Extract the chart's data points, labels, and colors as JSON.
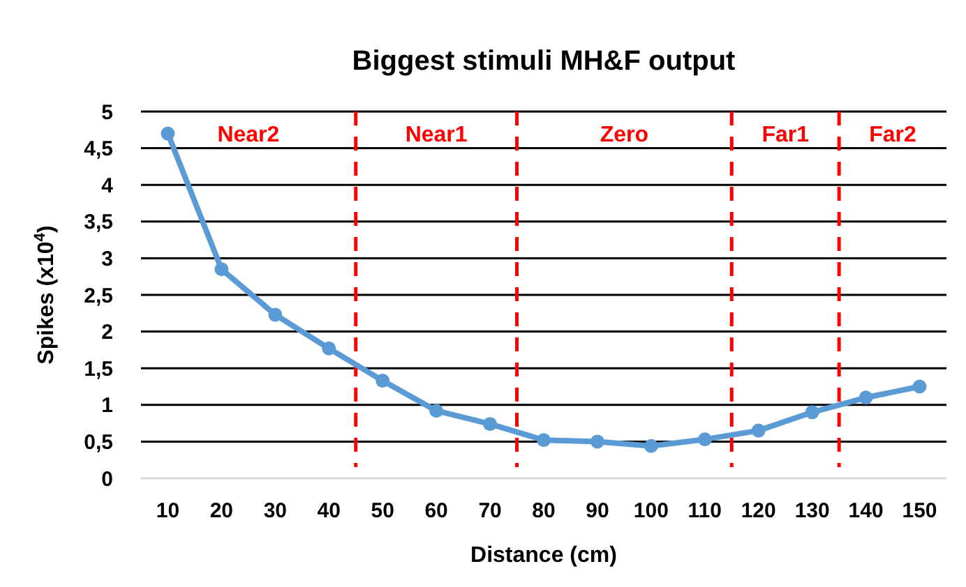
{
  "chart_data": {
    "type": "line",
    "title": "Biggest stimuli MH&F output",
    "xlabel": "Distance (cm)",
    "ylabel": "Spikes (x10$^{4}$)",
    "x": [
      10,
      20,
      30,
      40,
      50,
      60,
      70,
      80,
      90,
      100,
      110,
      120,
      130,
      140,
      150
    ],
    "series": [
      {
        "color": "#5b9bd5",
        "values": [
          4.7,
          2.85,
          2.23,
          1.77,
          1.33,
          0.92,
          0.74,
          0.52,
          0.5,
          0.44,
          0.53,
          0.65,
          0.9,
          1.1,
          1.25
        ]
      }
    ],
    "xlim": [
      5,
      155
    ],
    "xticks": [
      10,
      20,
      30,
      40,
      50,
      60,
      70,
      80,
      90,
      100,
      110,
      120,
      130,
      140,
      150
    ],
    "ylim": [
      0,
      5
    ],
    "yticks": [
      0,
      {
        "value": 0.5,
        "label": "0,5"
      },
      1,
      {
        "value": 1.5,
        "label": "1,5"
      },
      2,
      {
        "value": 2.5,
        "label": "2,5"
      },
      3,
      {
        "value": 3.5,
        "label": "3,5"
      },
      4,
      {
        "value": 4.5,
        "label": "4,5"
      },
      5
    ],
    "grid": "y",
    "marker": "circle",
    "line_style": "solid",
    "ref_lines": [
      {
        "axis": "x",
        "value": 45,
        "color": "#ff0000",
        "line_style": "dashed"
      },
      {
        "axis": "x",
        "value": 75,
        "color": "#ff0000",
        "line_style": "dashed"
      },
      {
        "axis": "x",
        "value": 115,
        "color": "#ff0000",
        "line_style": "dashed"
      },
      {
        "axis": "x",
        "value": 135,
        "color": "#ff0000",
        "line_style": "dashed"
      }
    ],
    "annotations": [
      "Near2",
      "Near1",
      "Zero",
      "Far1",
      "Far2"
    ]
  }
}
